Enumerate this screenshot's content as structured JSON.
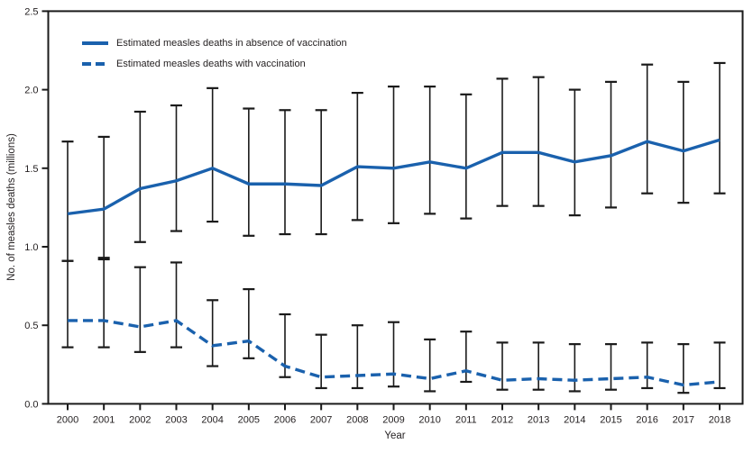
{
  "figure": {
    "background": "#ffffff"
  },
  "chart_data": {
    "type": "line",
    "title": "",
    "xlabel": "Year",
    "ylabel": "No. of measles deaths (millions)",
    "ylim": [
      0,
      2.5
    ],
    "yticks": [
      "0.0",
      "0.5",
      "1.0",
      "1.5",
      "2.0",
      "2.5"
    ],
    "categories": [
      "2000",
      "2001",
      "2002",
      "2003",
      "2004",
      "2005",
      "2006",
      "2007",
      "2008",
      "2009",
      "2010",
      "2011",
      "2012",
      "2013",
      "2014",
      "2015",
      "2016",
      "2017",
      "2018"
    ],
    "grid": false,
    "legend_position": "top-left-inside",
    "error_bars": true,
    "line_color": "#1a61ad",
    "axis_color": "#1a1a1a",
    "series": [
      {
        "name": "Estimated measles deaths in absence of vaccination",
        "style": "solid",
        "values": [
          1.21,
          1.24,
          1.37,
          1.42,
          1.5,
          1.4,
          1.4,
          1.39,
          1.51,
          1.5,
          1.54,
          1.5,
          1.6,
          1.6,
          1.54,
          1.58,
          1.67,
          1.61,
          1.68
        ],
        "ci_low": [
          0.91,
          0.93,
          1.03,
          1.1,
          1.16,
          1.07,
          1.08,
          1.08,
          1.17,
          1.15,
          1.21,
          1.18,
          1.26,
          1.26,
          1.2,
          1.25,
          1.34,
          1.28,
          1.34
        ],
        "ci_high": [
          1.67,
          1.7,
          1.86,
          1.9,
          2.01,
          1.88,
          1.87,
          1.87,
          1.98,
          2.02,
          2.02,
          1.97,
          2.07,
          2.08,
          2.0,
          2.05,
          2.16,
          2.05,
          2.17
        ]
      },
      {
        "name": "Estimated measles deaths with vaccination",
        "style": "dashed",
        "values": [
          0.53,
          0.53,
          0.49,
          0.53,
          0.37,
          0.4,
          0.24,
          0.17,
          0.18,
          0.19,
          0.16,
          0.21,
          0.15,
          0.16,
          0.15,
          0.16,
          0.17,
          0.12,
          0.14
        ],
        "ci_low": [
          0.36,
          0.36,
          0.33,
          0.36,
          0.24,
          0.29,
          0.17,
          0.1,
          0.1,
          0.11,
          0.08,
          0.14,
          0.09,
          0.09,
          0.08,
          0.09,
          0.1,
          0.07,
          0.1
        ],
        "ci_high": [
          0.91,
          0.92,
          0.87,
          0.9,
          0.66,
          0.73,
          0.57,
          0.44,
          0.5,
          0.52,
          0.41,
          0.46,
          0.39,
          0.39,
          0.38,
          0.38,
          0.39,
          0.38,
          0.39
        ]
      }
    ]
  }
}
